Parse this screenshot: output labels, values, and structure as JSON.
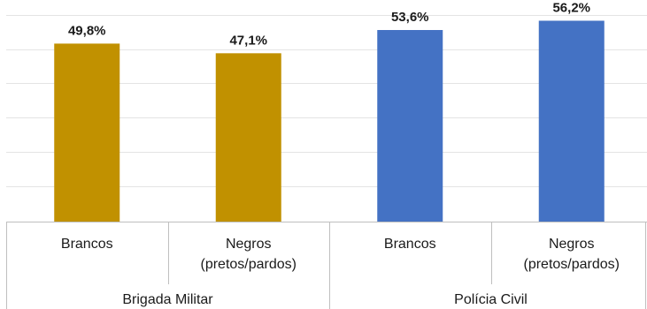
{
  "chart_data": {
    "type": "bar",
    "groups": [
      {
        "name": "Brigada Militar",
        "color": "#C19100"
      },
      {
        "name": "Polícia Civil",
        "color": "#4472C4"
      }
    ],
    "bars": [
      {
        "group": 0,
        "category": [
          "Brancos"
        ],
        "value": 49.8,
        "label": "49,8%"
      },
      {
        "group": 0,
        "category": [
          "Negros",
          "(pretos/pardos)"
        ],
        "value": 47.1,
        "label": "47,1%"
      },
      {
        "group": 1,
        "category": [
          "Brancos"
        ],
        "value": 53.6,
        "label": "53,6%"
      },
      {
        "group": 1,
        "category": [
          "Negros",
          "(pretos/pardos)"
        ],
        "value": 56.2,
        "label": "56,2%"
      }
    ],
    "ylim": [
      0,
      62
    ],
    "grid": true,
    "legend": "none"
  }
}
